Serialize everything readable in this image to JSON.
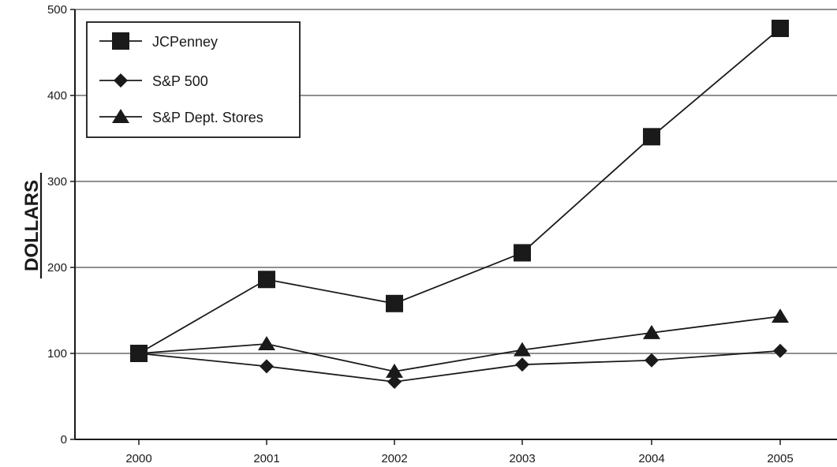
{
  "chart_data": {
    "type": "line",
    "title": "",
    "xlabel": "",
    "ylabel": "DOLLARS",
    "x": [
      "2000",
      "2001",
      "2002",
      "2003",
      "2004",
      "2005"
    ],
    "ylim": [
      0,
      500
    ],
    "yticks": [
      0,
      100,
      200,
      300,
      400,
      500
    ],
    "grid": "horizontal",
    "legend_position": "top-left",
    "series": [
      {
        "name": "JCPenney",
        "marker": "square",
        "values": [
          100,
          186,
          158,
          217,
          352,
          478
        ]
      },
      {
        "name": "S&P 500",
        "marker": "diamond",
        "values": [
          100,
          85,
          67,
          87,
          92,
          103
        ]
      },
      {
        "name": "S&P Dept. Stores",
        "marker": "triangle",
        "values": [
          100,
          111,
          79,
          104,
          124,
          143
        ]
      }
    ],
    "colors": {
      "line": "#1a1a1a",
      "grid": "#6b6b6b"
    }
  }
}
